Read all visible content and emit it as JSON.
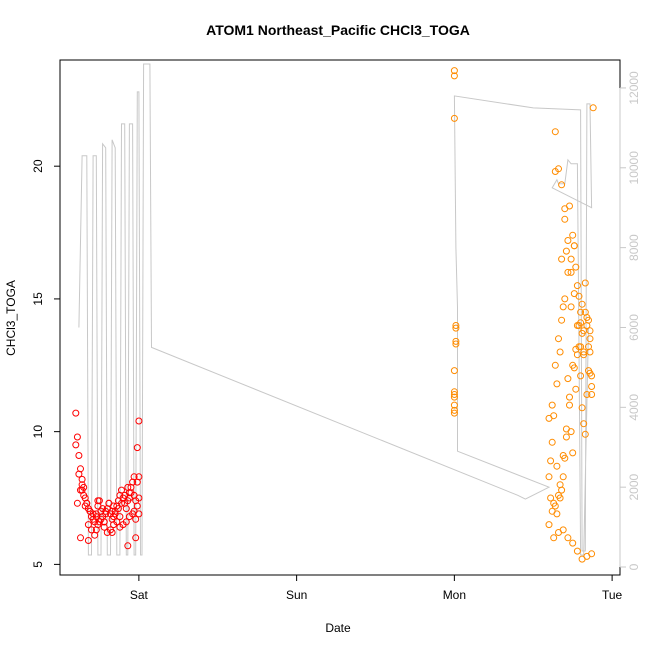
{
  "chart_data": {
    "type": "scatter",
    "title": "ATOM1 Northeast_Pacific CHCl3_TOGA",
    "xlabel": "Date",
    "ylabel": "CHCl3_TOGA",
    "x_ticks": [
      "Sat",
      "Sun",
      "Mon",
      "Tue"
    ],
    "x_tick_days": [
      1,
      2,
      3,
      4
    ],
    "xlim_days": [
      0.5,
      4.05
    ],
    "ylim": [
      4.6,
      24.0
    ],
    "y_ticks": [
      5,
      10,
      15,
      20
    ],
    "y2lim": [
      -200,
      12700
    ],
    "y2_ticks": [
      0,
      2000,
      4000,
      6000,
      8000,
      10000,
      12000
    ],
    "grid": false,
    "colors": {
      "axis": "#000000",
      "altitude": "#c8c8c8",
      "series_sat": "#ff0000",
      "series_tue": "#ff8c00"
    },
    "altitude_line": [
      [
        0.62,
        6000
      ],
      [
        0.64,
        10300
      ],
      [
        0.67,
        10300
      ],
      [
        0.68,
        300
      ],
      [
        0.7,
        300
      ],
      [
        0.71,
        10300
      ],
      [
        0.73,
        10300
      ],
      [
        0.74,
        300
      ],
      [
        0.76,
        300
      ],
      [
        0.77,
        10600
      ],
      [
        0.79,
        10500
      ],
      [
        0.8,
        300
      ],
      [
        0.82,
        300
      ],
      [
        0.83,
        10700
      ],
      [
        0.85,
        10500
      ],
      [
        0.86,
        300
      ],
      [
        0.88,
        300
      ],
      [
        0.89,
        11100
      ],
      [
        0.91,
        11100
      ],
      [
        0.92,
        300
      ],
      [
        0.93,
        300
      ],
      [
        0.94,
        11100
      ],
      [
        0.96,
        11100
      ],
      [
        0.97,
        300
      ],
      [
        0.98,
        300
      ],
      [
        0.99,
        11900
      ],
      [
        1.0,
        11900
      ],
      [
        1.01,
        300
      ],
      [
        1.02,
        300
      ],
      [
        1.03,
        12600
      ],
      [
        1.07,
        12600
      ],
      [
        1.08,
        5500
      ],
      [
        3.4,
        1800
      ],
      [
        3.45,
        1700
      ],
      [
        3.6,
        2000
      ],
      [
        3.02,
        2900
      ],
      [
        3.02,
        6500
      ],
      [
        3.01,
        8000
      ],
      [
        3.0,
        11800
      ],
      [
        3.5,
        11500
      ],
      [
        3.8,
        11450
      ],
      [
        3.81,
        400
      ],
      [
        3.83,
        400
      ],
      [
        3.84,
        11600
      ],
      [
        3.86,
        11600
      ],
      [
        3.87,
        9000
      ],
      [
        3.62,
        9500
      ],
      [
        3.65,
        9700
      ],
      [
        3.66,
        9600
      ],
      [
        3.7,
        9600
      ],
      [
        3.72,
        10200
      ],
      [
        3.74,
        10100
      ],
      [
        3.78,
        10100
      ],
      [
        3.79,
        5500
      ],
      [
        3.8,
        300
      ],
      [
        3.82,
        300
      ],
      [
        3.85,
        6000
      ]
    ],
    "series": [
      {
        "x": [
          0.6,
          0.61,
          0.62,
          0.63,
          0.64,
          0.65,
          0.66,
          0.67,
          0.68,
          0.69,
          0.7,
          0.71,
          0.72,
          0.73,
          0.74,
          0.75,
          0.76,
          0.77,
          0.78,
          0.79,
          0.8,
          0.81,
          0.82,
          0.83,
          0.84,
          0.85,
          0.86,
          0.87,
          0.88,
          0.89,
          0.9,
          0.91,
          0.92,
          0.93,
          0.94,
          0.95,
          0.96,
          0.97,
          0.98,
          0.99,
          1.0,
          0.6,
          0.62,
          0.64,
          0.66,
          0.68,
          0.7,
          0.72,
          0.74,
          0.76,
          0.78,
          0.8,
          0.82,
          0.84,
          0.86,
          0.88,
          0.9,
          0.92,
          0.94,
          0.96,
          0.98,
          1.0,
          0.61,
          0.63,
          0.65,
          0.67,
          0.69,
          0.71,
          0.73,
          0.75,
          0.77,
          0.79,
          0.81,
          0.83,
          0.85,
          0.87,
          0.89,
          0.91,
          0.93,
          0.95,
          0.97,
          0.99,
          0.63,
          0.68,
          0.73,
          0.78,
          0.83,
          0.88,
          0.93,
          0.98,
          0.64,
          0.74,
          0.84,
          0.94,
          1.0,
          1.0,
          0.99,
          0.97
        ],
        "y": [
          10.7,
          9.8,
          9.1,
          8.6,
          8.2,
          7.9,
          7.5,
          7.3,
          7.1,
          7.0,
          6.8,
          6.7,
          6.6,
          6.9,
          7.2,
          7.4,
          7.0,
          6.8,
          6.6,
          6.9,
          7.1,
          7.3,
          6.9,
          6.7,
          6.8,
          7.0,
          7.2,
          7.4,
          7.6,
          7.8,
          7.5,
          7.3,
          7.1,
          7.4,
          7.7,
          7.9,
          8.1,
          7.6,
          7.4,
          7.2,
          7.5,
          9.5,
          8.4,
          7.8,
          7.2,
          6.5,
          6.3,
          6.1,
          6.5,
          6.7,
          6.4,
          6.2,
          6.3,
          6.5,
          6.6,
          6.4,
          6.5,
          6.6,
          6.8,
          6.9,
          6.7,
          6.9,
          7.3,
          7.8,
          7.6,
          7.3,
          7.0,
          6.9,
          6.8,
          6.6,
          7.1,
          7.0,
          7.3,
          7.0,
          6.9,
          7.1,
          7.3,
          7.6,
          7.9,
          7.7,
          8.3,
          8.1,
          6.0,
          5.9,
          6.3,
          6.6,
          6.2,
          6.8,
          5.7,
          6.0,
          8.0,
          7.4,
          7.2,
          7.5,
          8.3,
          10.4,
          9.4,
          7.0
        ],
        "color": "#ff0000"
      },
      {
        "x": [
          3.0,
          3.0,
          3.0,
          3.01,
          3.01,
          3.01,
          3.01,
          3.0,
          3.0,
          3.0,
          3.0,
          3.0,
          3.0,
          3.0,
          3.6,
          3.61,
          3.62,
          3.63,
          3.64,
          3.65,
          3.66,
          3.67,
          3.68,
          3.69,
          3.7,
          3.71,
          3.72,
          3.73,
          3.74,
          3.75,
          3.76,
          3.77,
          3.78,
          3.79,
          3.8,
          3.81,
          3.82,
          3.83,
          3.84,
          3.85,
          3.86,
          3.87,
          3.6,
          3.62,
          3.64,
          3.66,
          3.68,
          3.7,
          3.72,
          3.74,
          3.76,
          3.78,
          3.8,
          3.82,
          3.84,
          3.86,
          3.61,
          3.63,
          3.65,
          3.67,
          3.69,
          3.71,
          3.73,
          3.75,
          3.77,
          3.79,
          3.81,
          3.83,
          3.85,
          3.87,
          3.62,
          3.64,
          3.66,
          3.68,
          3.7,
          3.72,
          3.74,
          3.76,
          3.78,
          3.8,
          3.82,
          3.84,
          3.86,
          3.65,
          3.67,
          3.69,
          3.71,
          3.73,
          3.75,
          3.77,
          3.79,
          3.81,
          3.83,
          3.85,
          3.87,
          3.6,
          3.63,
          3.66,
          3.69,
          3.72,
          3.75,
          3.78,
          3.81,
          3.84,
          3.87,
          3.64,
          3.7,
          3.76,
          3.82,
          3.88,
          3.68,
          3.74,
          3.8,
          3.86
        ],
        "y": [
          23.6,
          23.4,
          21.8,
          14.0,
          13.9,
          13.4,
          13.3,
          12.3,
          11.5,
          11.3,
          11.0,
          10.8,
          10.7,
          11.4,
          8.3,
          7.5,
          7.0,
          7.3,
          7.2,
          6.9,
          7.6,
          8.0,
          7.8,
          8.3,
          9.0,
          9.8,
          12.0,
          11.0,
          10.0,
          9.2,
          12.4,
          11.6,
          12.9,
          13.2,
          12.1,
          10.9,
          10.3,
          9.9,
          11.4,
          12.3,
          13.0,
          11.7,
          10.5,
          11.0,
          12.5,
          13.5,
          14.2,
          15.0,
          16.0,
          16.5,
          17.0,
          15.5,
          14.5,
          13.8,
          14.0,
          13.5,
          8.9,
          10.6,
          11.8,
          13.0,
          14.7,
          16.8,
          18.5,
          17.4,
          16.2,
          15.1,
          13.7,
          14.5,
          13.2,
          12.1,
          9.6,
          19.8,
          19.9,
          19.3,
          18.4,
          17.2,
          16.0,
          15.2,
          14.0,
          13.2,
          12.9,
          14.3,
          13.8,
          8.7,
          7.5,
          9.1,
          10.1,
          11.3,
          12.5,
          13.1,
          14.0,
          14.8,
          15.6,
          14.2,
          11.4,
          6.5,
          6.0,
          6.2,
          6.3,
          6.0,
          5.8,
          5.5,
          5.2,
          5.3,
          5.4,
          21.3,
          18.0,
          17.0,
          13.0,
          22.2,
          16.5,
          14.7,
          14.1,
          12.2
        ],
        "color": "#ff8c00"
      }
    ]
  }
}
